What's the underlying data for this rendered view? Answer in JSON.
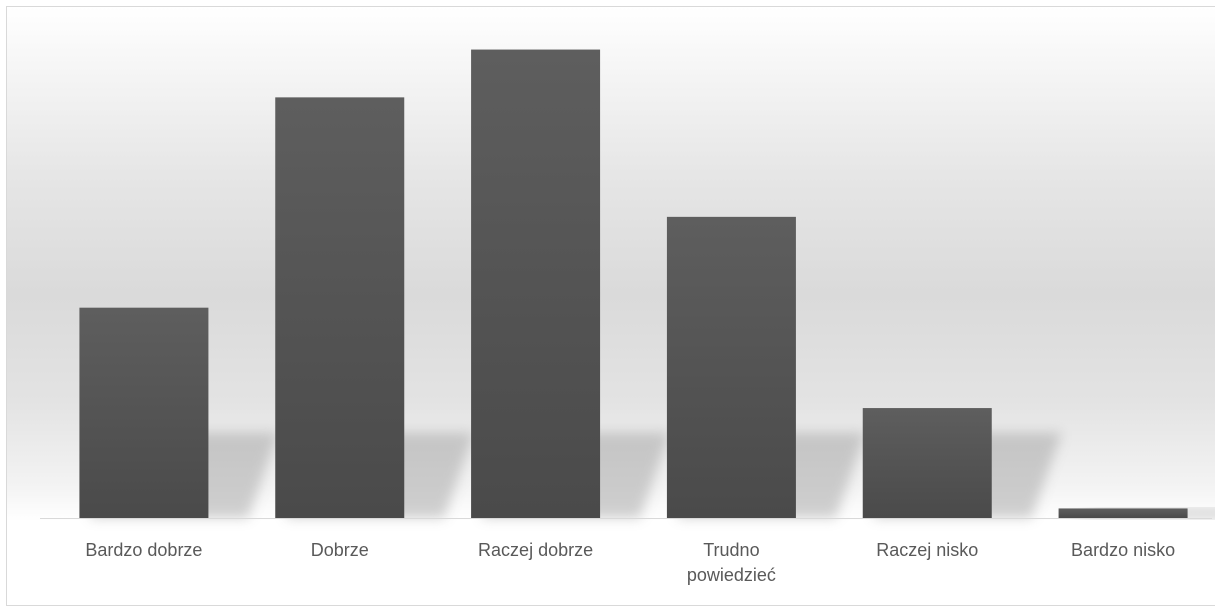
{
  "chart_data": {
    "type": "bar",
    "title": "",
    "xlabel": "",
    "ylabel": "",
    "categories": [
      "Bardzo dobrze",
      "Dobrze",
      "Raczej dobrze",
      "Trudno powiedzieć",
      "Raczej nisko",
      "Bardzo nisko"
    ],
    "values": [
      44,
      88,
      98,
      63,
      23,
      2
    ],
    "ylim": [
      0,
      100
    ],
    "grid": false,
    "legend": "none",
    "colors": {
      "bar_top": "#5e5e5e",
      "bar_bottom": "#4a4a4a",
      "shadow": "#9a9a9a",
      "label": "#595959",
      "axis": "#d9d9d9"
    }
  }
}
